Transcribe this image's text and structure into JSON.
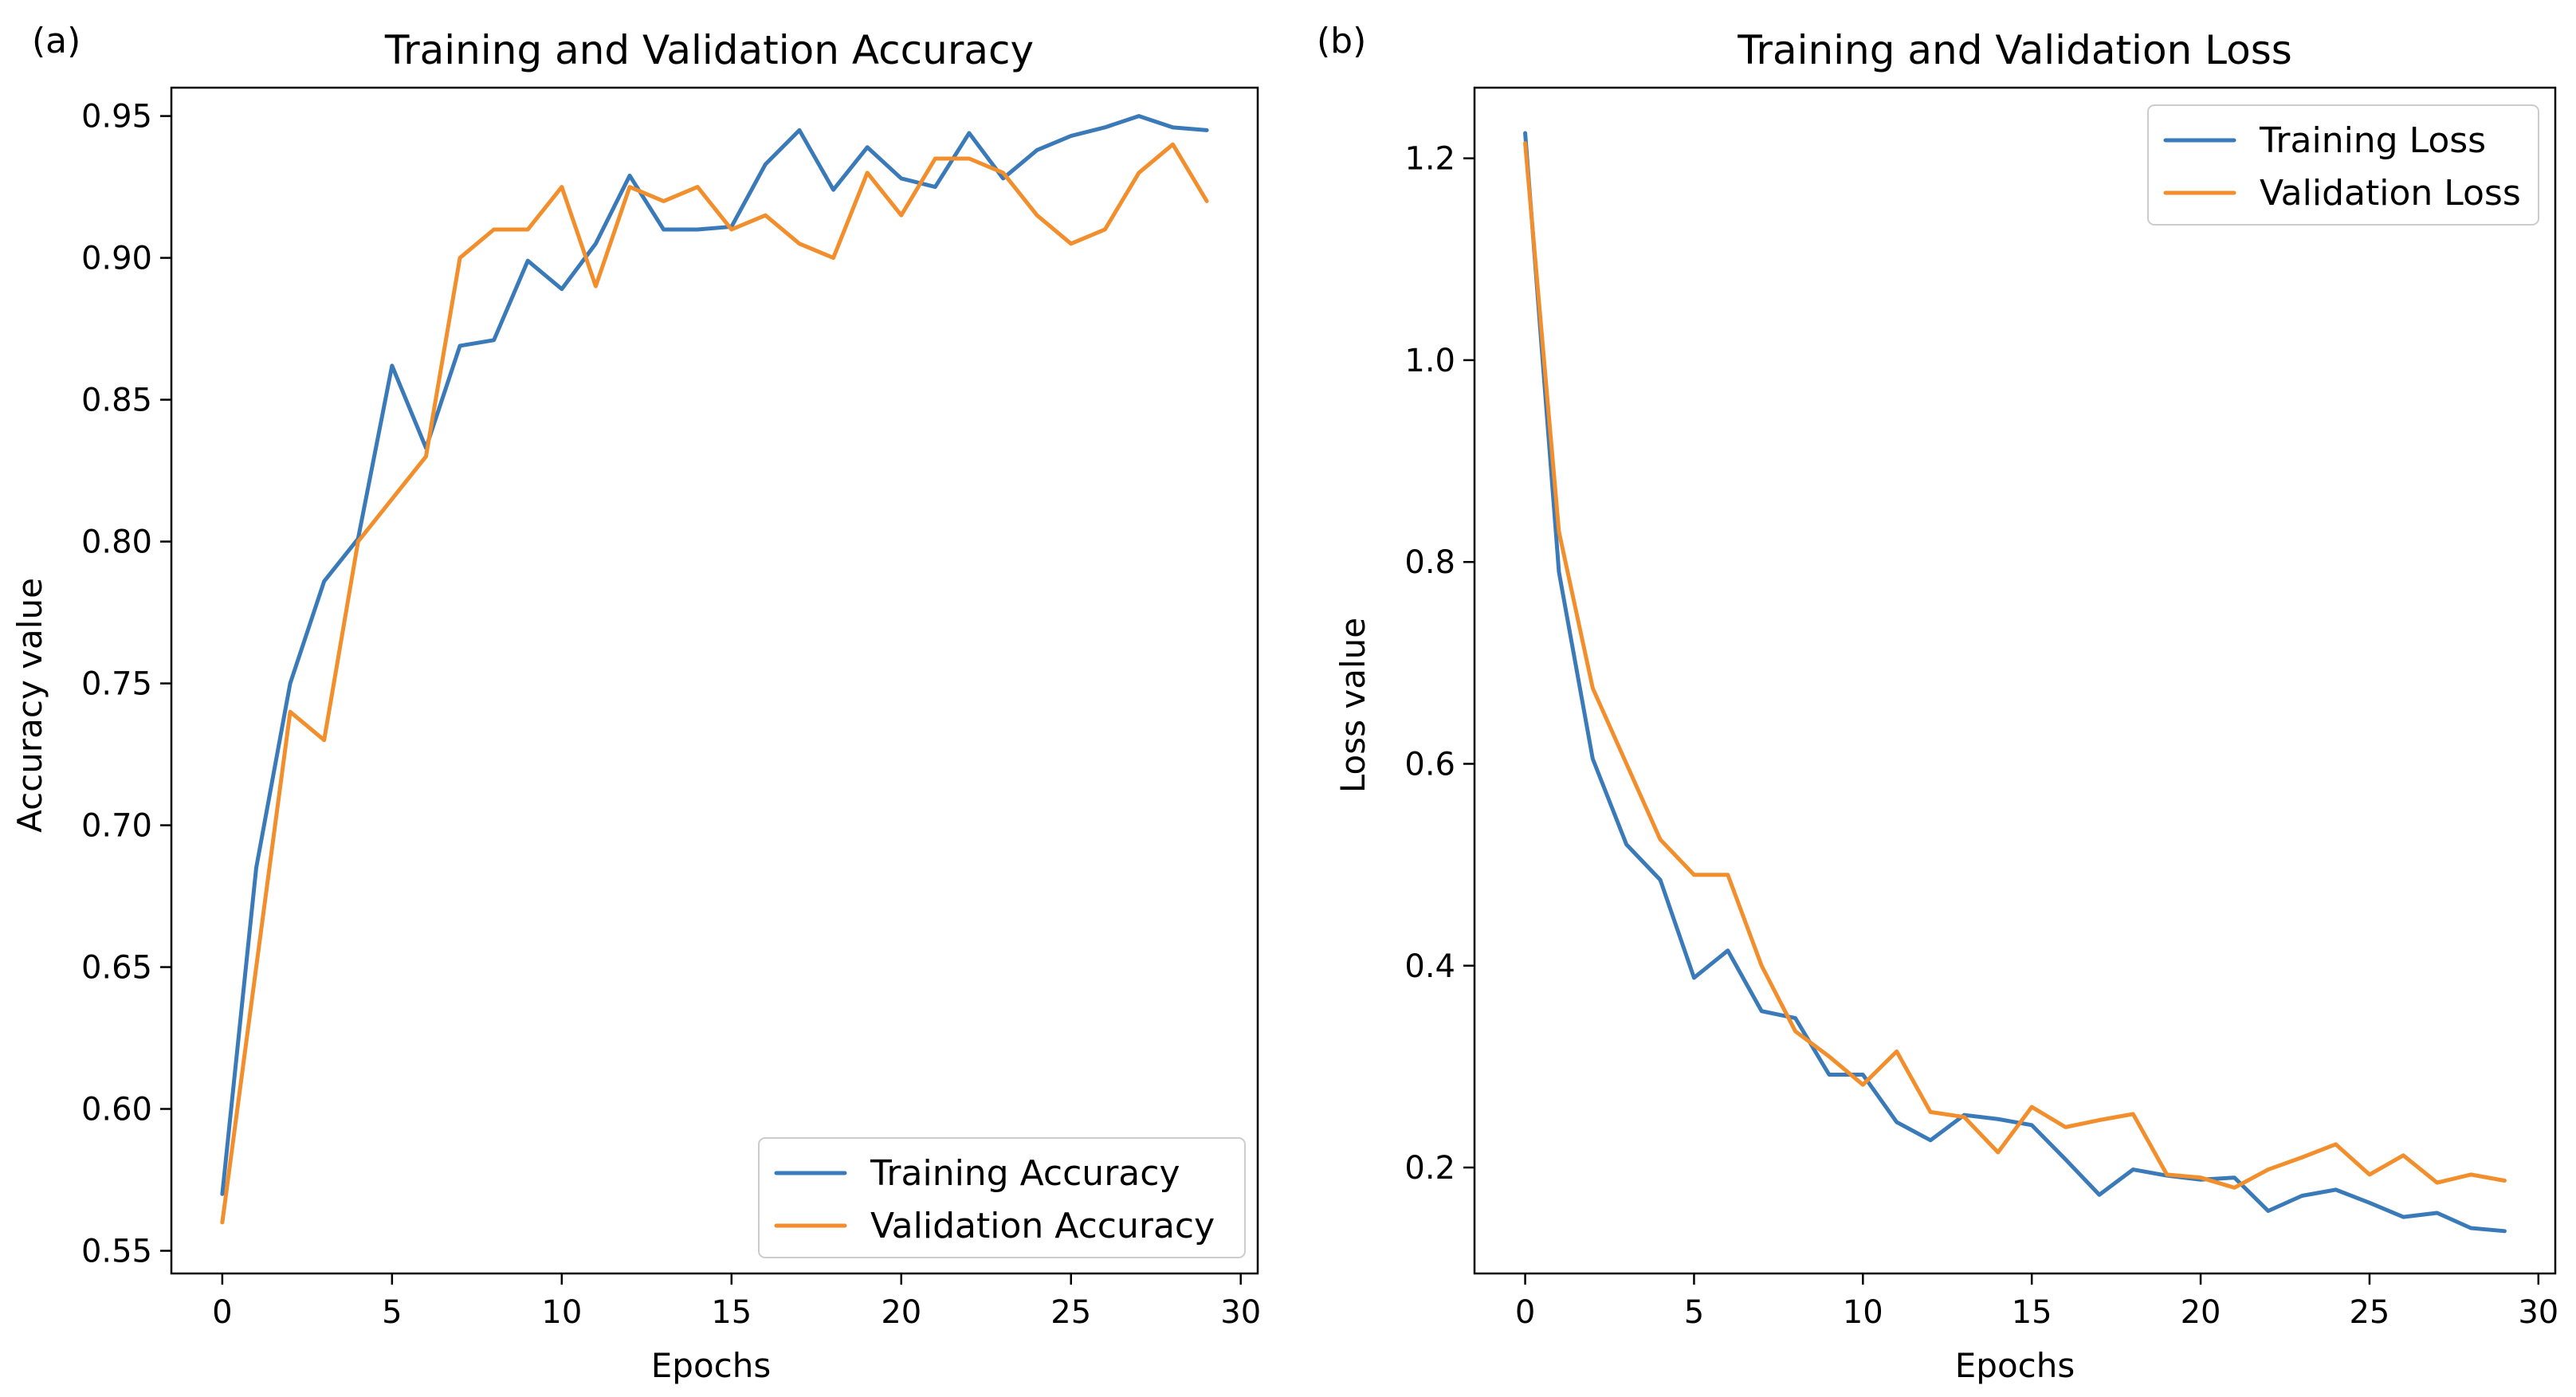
{
  "colors": {
    "training": "#3a7ab8",
    "validation": "#f28e2b"
  },
  "chart_data": [
    {
      "panel_label": "(a)",
      "type": "line",
      "title": "Training and Validation Accuracy",
      "xlabel": "Epochs",
      "ylabel": "Accuracy value",
      "xlim": [
        -1.5,
        30.5
      ],
      "ylim": [
        0.542,
        0.96
      ],
      "xticks": [
        0,
        5,
        10,
        15,
        20,
        25,
        30
      ],
      "xtick_labels": [
        "0",
        "5",
        "10",
        "15",
        "20",
        "25",
        "30"
      ],
      "yticks": [
        0.55,
        0.6,
        0.65,
        0.7,
        0.75,
        0.8,
        0.85,
        0.9,
        0.95
      ],
      "ytick_labels": [
        "0.55",
        "0.60",
        "0.65",
        "0.70",
        "0.75",
        "0.80",
        "0.85",
        "0.90",
        "0.95"
      ],
      "grid": false,
      "legend_position": "lower-right",
      "x": [
        0,
        1,
        2,
        3,
        4,
        5,
        6,
        7,
        8,
        9,
        10,
        11,
        12,
        13,
        14,
        15,
        16,
        17,
        18,
        19,
        20,
        21,
        22,
        23,
        24,
        25,
        26,
        27,
        28,
        29
      ],
      "series": [
        {
          "name": "Training Accuracy",
          "color_key": "training",
          "values": [
            0.57,
            0.685,
            0.75,
            0.786,
            0.801,
            0.862,
            0.833,
            0.869,
            0.871,
            0.899,
            0.889,
            0.905,
            0.929,
            0.91,
            0.91,
            0.911,
            0.933,
            0.945,
            0.924,
            0.939,
            0.928,
            0.925,
            0.944,
            0.928,
            0.938,
            0.943,
            0.946,
            0.95,
            0.946,
            0.945
          ]
        },
        {
          "name": "Validation Accuracy",
          "color_key": "validation",
          "values": [
            0.56,
            0.65,
            0.74,
            0.73,
            0.8,
            0.815,
            0.83,
            0.9,
            0.91,
            0.91,
            0.925,
            0.89,
            0.925,
            0.92,
            0.925,
            0.91,
            0.915,
            0.905,
            0.9,
            0.93,
            0.915,
            0.935,
            0.935,
            0.93,
            0.915,
            0.905,
            0.91,
            0.93,
            0.94,
            0.92
          ]
        }
      ]
    },
    {
      "panel_label": "(b)",
      "type": "line",
      "title": "Training and Validation Loss",
      "xlabel": "Epochs",
      "ylabel": "Loss value",
      "xlim": [
        -1.5,
        30.5
      ],
      "ylim": [
        0.095,
        1.27
      ],
      "xticks": [
        0,
        5,
        10,
        15,
        20,
        25,
        30
      ],
      "xtick_labels": [
        "0",
        "5",
        "10",
        "15",
        "20",
        "25",
        "30"
      ],
      "yticks": [
        0.2,
        0.4,
        0.6,
        0.8,
        1.0,
        1.2
      ],
      "ytick_labels": [
        "0.2",
        "0.4",
        "0.6",
        "0.8",
        "1.0",
        "1.2"
      ],
      "grid": false,
      "legend_position": "upper-right",
      "x": [
        0,
        1,
        2,
        3,
        4,
        5,
        6,
        7,
        8,
        9,
        10,
        11,
        12,
        13,
        14,
        15,
        16,
        17,
        18,
        19,
        20,
        21,
        22,
        23,
        24,
        25,
        26,
        27,
        28,
        29
      ],
      "series": [
        {
          "name": "Training Loss",
          "color_key": "training",
          "values": [
            1.225,
            0.79,
            0.605,
            0.52,
            0.485,
            0.388,
            0.415,
            0.355,
            0.348,
            0.292,
            0.292,
            0.245,
            0.227,
            0.252,
            0.248,
            0.242,
            0.208,
            0.173,
            0.198,
            0.192,
            0.188,
            0.19,
            0.157,
            0.172,
            0.178,
            0.165,
            0.151,
            0.155,
            0.14,
            0.137
          ]
        },
        {
          "name": "Validation Loss",
          "color_key": "validation",
          "values": [
            1.215,
            0.83,
            0.675,
            0.6,
            0.525,
            0.49,
            0.49,
            0.4,
            0.335,
            0.31,
            0.282,
            0.315,
            0.255,
            0.25,
            0.215,
            0.26,
            0.24,
            0.247,
            0.253,
            0.193,
            0.19,
            0.18,
            0.198,
            0.21,
            0.223,
            0.193,
            0.212,
            0.185,
            0.193,
            0.187
          ]
        }
      ]
    }
  ]
}
